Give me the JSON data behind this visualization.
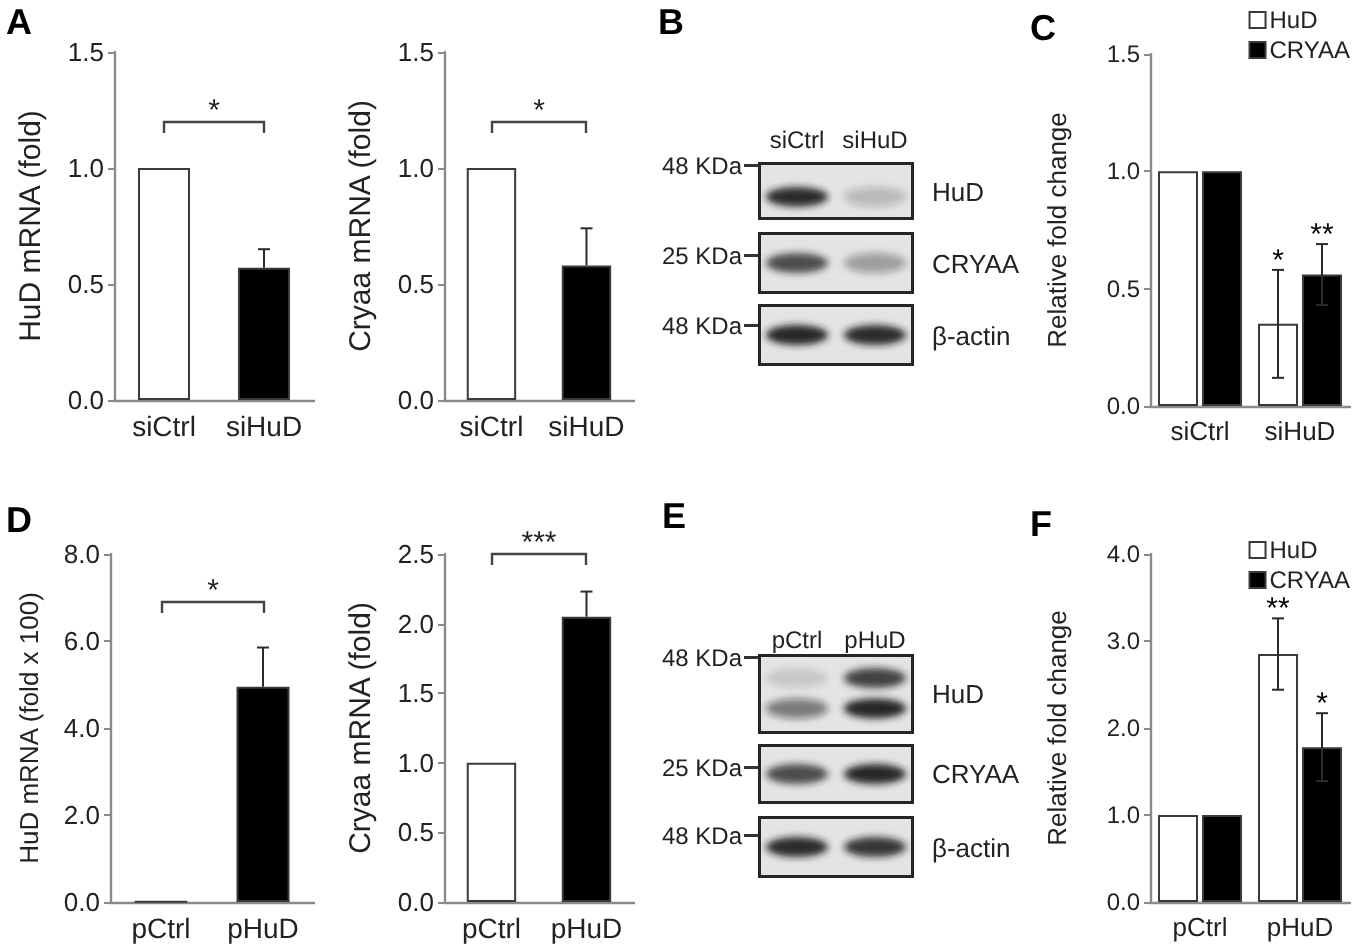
{
  "chart_data": [
    {
      "type": "bar",
      "title": "A",
      "ylabel": "HuD mRNA (fold)",
      "categories": [
        "siCtrl",
        "siHuD"
      ],
      "values": [
        1.0,
        0.57
      ],
      "colors": [
        "#ffffff",
        "#000000"
      ],
      "errors": [
        null,
        [
          0.57,
          0.65
        ]
      ],
      "ylim": [
        0,
        1.5
      ],
      "yticks": [
        {
          "value": 0,
          "label": "0.0"
        },
        0.5,
        {
          "value": 1,
          "label": "1.0"
        },
        1.5
      ],
      "annotations": [
        "*"
      ]
    },
    {
      "type": "bar",
      "ylabel": "Cryaa mRNA (fold)",
      "categories": [
        "siCtrl",
        "siHuD"
      ],
      "values": [
        1.0,
        0.58
      ],
      "colors": [
        "#ffffff",
        "#000000"
      ],
      "errors": [
        null,
        [
          0.58,
          0.74
        ]
      ],
      "ylim": [
        0,
        1.5
      ],
      "yticks": [
        {
          "value": 0,
          "label": "0.0"
        },
        0.5,
        {
          "value": 1,
          "label": "1.0"
        },
        1.5
      ],
      "annotations": [
        "*"
      ]
    },
    {
      "type": "other",
      "title": "B",
      "categories": [
        "siCtrl",
        "siHuD"
      ],
      "y_categories": [
        "48 KDa",
        "25 KDa",
        "48 KDa"
      ],
      "y2_categories": [
        "HuD",
        "CRYAA",
        "β-actin"
      ]
    },
    {
      "type": "bar",
      "title": "C",
      "ylabel": "Relative fold change",
      "categories": [
        "siCtrl",
        "siHuD"
      ],
      "series": [
        {
          "name": "HuD",
          "color": "#ffffff",
          "values": [
            1.0,
            0.35
          ],
          "errors": [
            null,
            0.23
          ],
          "value_labels": [
            null,
            "*"
          ]
        },
        {
          "name": "CRYAA",
          "color": "#000000",
          "values": [
            1.0,
            0.56
          ],
          "errors": [
            null,
            0.13
          ],
          "value_labels": [
            null,
            "**"
          ]
        }
      ],
      "ylim": [
        0,
        1.5
      ],
      "yticks": [
        {
          "value": 0,
          "label": "0.0"
        },
        0.5,
        {
          "value": 1,
          "label": "1.0"
        },
        1.5
      ],
      "legend": "top right"
    },
    {
      "type": "bar",
      "title": "D",
      "ylabel": "HuD mRNA (fold x 100)",
      "categories": [
        "pCtrl",
        "pHuD"
      ],
      "values": [
        0.01,
        4.95
      ],
      "colors": [
        "#3a3a3a",
        "#000000"
      ],
      "errors": [
        null,
        [
          4.95,
          5.85
        ]
      ],
      "ylim": [
        0,
        8
      ],
      "yticks": [
        {
          "value": 0,
          "label": "0.0"
        },
        {
          "value": 2,
          "label": "2.0"
        },
        {
          "value": 4,
          "label": "4.0"
        },
        {
          "value": 6,
          "label": "6.0"
        },
        {
          "value": 8,
          "label": "8.0"
        }
      ],
      "annotations": [
        "*"
      ]
    },
    {
      "type": "bar",
      "ylabel": "Cryaa mRNA (fold)",
      "categories": [
        "pCtrl",
        "pHuD"
      ],
      "values": [
        1.0,
        2.05
      ],
      "colors": [
        "#ffffff",
        "#000000"
      ],
      "errors": [
        null,
        [
          2.05,
          2.23
        ]
      ],
      "ylim": [
        0,
        2.5
      ],
      "yticks": [
        {
          "value": 0,
          "label": "0.0"
        },
        0.5,
        {
          "value": 1,
          "label": "1.0"
        },
        1.5,
        {
          "value": 2,
          "label": "2.0"
        },
        2.5
      ],
      "annotations": [
        "***"
      ]
    },
    {
      "type": "other",
      "title": "E",
      "categories": [
        "pCtrl",
        "pHuD"
      ],
      "y_categories": [
        "48 KDa",
        "25 KDa",
        "48 KDa"
      ],
      "y2_categories": [
        "HuD",
        "CRYAA",
        "β-actin"
      ]
    },
    {
      "type": "bar",
      "title": "F",
      "ylabel": "Relative fold change",
      "categories": [
        "pCtrl",
        "pHuD"
      ],
      "series": [
        {
          "name": "HuD",
          "color": "#ffffff",
          "values": [
            1.0,
            2.85
          ],
          "errors": [
            null,
            0.41
          ],
          "value_labels": [
            null,
            "**"
          ]
        },
        {
          "name": "CRYAA",
          "color": "#000000",
          "values": [
            1.0,
            1.78
          ],
          "errors": [
            null,
            0.39
          ],
          "value_labels": [
            null,
            "*"
          ]
        }
      ],
      "ylim": [
        0,
        4
      ],
      "yticks": [
        {
          "value": 0,
          "label": "0.0"
        },
        {
          "value": 1,
          "label": "1.0"
        },
        {
          "value": 2,
          "label": "2.0"
        },
        {
          "value": 3,
          "label": "3.0"
        },
        {
          "value": 4,
          "label": "4.0"
        }
      ],
      "legend": "top right"
    }
  ]
}
